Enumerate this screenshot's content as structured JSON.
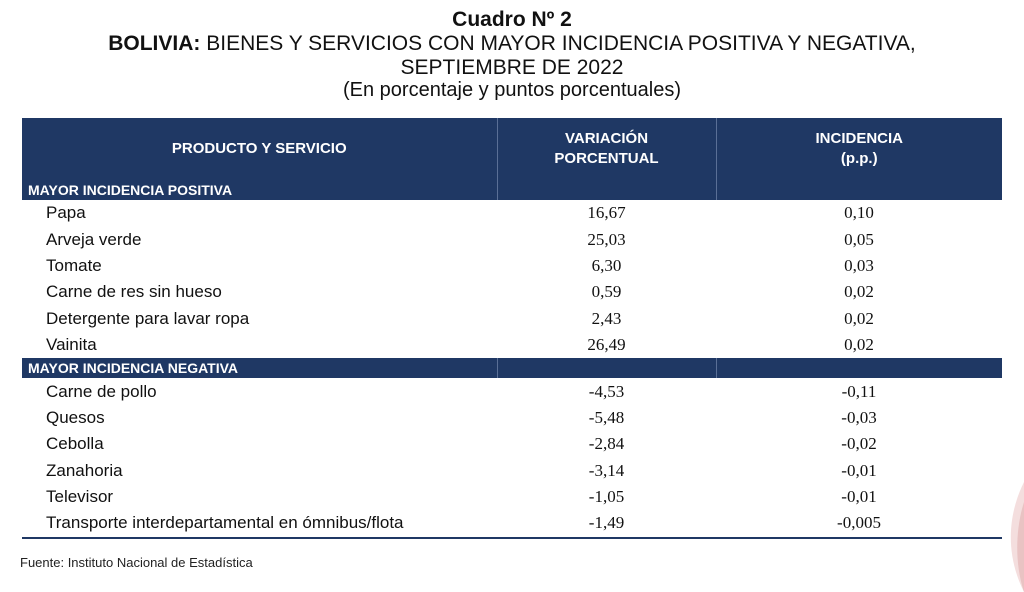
{
  "title": {
    "line1": "Cuadro Nº 2",
    "line2_bold": "BOLIVIA:",
    "line2_rest": " BIENES Y SERVICIOS CON MAYOR INCIDENCIA POSITIVA Y NEGATIVA,",
    "line3": "SEPTIEMBRE DE 2022",
    "line4": "(En porcentaje y puntos porcentuales)"
  },
  "table": {
    "headers": {
      "col1": "PRODUCTO Y SERVICIO",
      "col2_line1": "VARIACIÓN",
      "col2_line2": "PORCENTUAL",
      "col3_line1": "INCIDENCIA",
      "col3_line2": "(p.p.)"
    },
    "positive": {
      "label": "MAYOR INCIDENCIA POSITIVA",
      "rows": [
        {
          "name": "Papa",
          "variation": "16,67",
          "incidence": "0,10"
        },
        {
          "name": "Arveja verde",
          "variation": "25,03",
          "incidence": "0,05"
        },
        {
          "name": "Tomate",
          "variation": "6,30",
          "incidence": "0,03"
        },
        {
          "name": "Carne de res sin hueso",
          "variation": "0,59",
          "incidence": "0,02"
        },
        {
          "name": "Detergente para lavar ropa",
          "variation": "2,43",
          "incidence": "0,02"
        },
        {
          "name": "Vainita",
          "variation": "26,49",
          "incidence": "0,02"
        }
      ]
    },
    "negative": {
      "label": "MAYOR INCIDENCIA NEGATIVA",
      "rows": [
        {
          "name": "Carne de pollo",
          "variation": "-4,53",
          "incidence": "-0,11"
        },
        {
          "name": "Quesos",
          "variation": "-5,48",
          "incidence": "-0,03"
        },
        {
          "name": "Cebolla",
          "variation": "-2,84",
          "incidence": "-0,02"
        },
        {
          "name": "Zanahoria",
          "variation": "-3,14",
          "incidence": "-0,01"
        },
        {
          "name": "Televisor",
          "variation": "-1,05",
          "incidence": "-0,01"
        },
        {
          "name": "Transporte interdepartamental en ómnibus/flota",
          "variation": "-1,49",
          "incidence": "-0,005"
        }
      ]
    }
  },
  "source": "Fuente: Instituto Nacional de Estadística"
}
